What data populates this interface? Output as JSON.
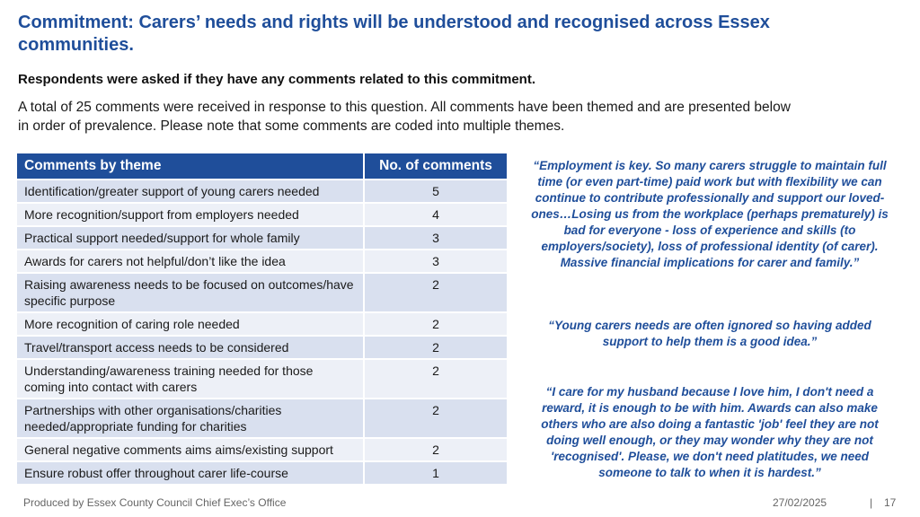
{
  "title": "Commitment: Carers’ needs and rights will be understood and recognised across Essex communities.",
  "question": "Respondents were asked if they have any comments related to this commitment.",
  "intro": "A total of 25 comments were received in response to this question. All comments have been themed and are presented below in order of prevalence. Please note that some comments are coded into multiple themes.",
  "table": {
    "headers": [
      "Comments by theme",
      "No. of comments"
    ],
    "rows": [
      {
        "theme": "Identification/greater support of young carers needed",
        "count": "5"
      },
      {
        "theme": "More recognition/support from employers needed",
        "count": "4"
      },
      {
        "theme": "Practical support needed/support for whole family",
        "count": "3"
      },
      {
        "theme": "Awards for carers not helpful/don’t like the idea",
        "count": "3"
      },
      {
        "theme": "Raising awareness needs to be focused on outcomes/have specific purpose",
        "count": "2"
      },
      {
        "theme": "More recognition of caring role needed",
        "count": "2"
      },
      {
        "theme": "Travel/transport access needs to be considered",
        "count": "2"
      },
      {
        "theme": "Understanding/awareness training needed for those coming into contact with carers",
        "count": "2"
      },
      {
        "theme": "Partnerships with other organisations/charities needed/appropriate funding for charities",
        "count": "2"
      },
      {
        "theme": "General negative comments aims aims/existing support",
        "count": "2"
      },
      {
        "theme": "Ensure robust offer throughout carer life-course",
        "count": "1"
      }
    ]
  },
  "quotes": [
    "“Employment is key. So many carers struggle to maintain full time (or even part-time) paid work but with flexibility we can continue to contribute professionally and support our loved-ones…Losing us from the workplace (perhaps prematurely) is bad for everyone - loss of experience and skills (to employers/society), loss of professional identity (of carer). Massive financial implications for carer and family.”",
    "“Young carers needs are often ignored so having added support to help them is a good idea.”",
    "“I care for my husband because I love him, I don't need a reward, it is enough to be with him. Awards can also make others who are also doing a fantastic 'job' feel they are not doing well enough, or they may wonder why they are not 'recognised'. Please, we don't need platitudes, we need someone to talk to when it is hardest.”"
  ],
  "footer": {
    "source": "Produced by Essex County Council Chief Exec’s Office",
    "date": "27/02/2025",
    "separator": "|",
    "page": "17"
  }
}
